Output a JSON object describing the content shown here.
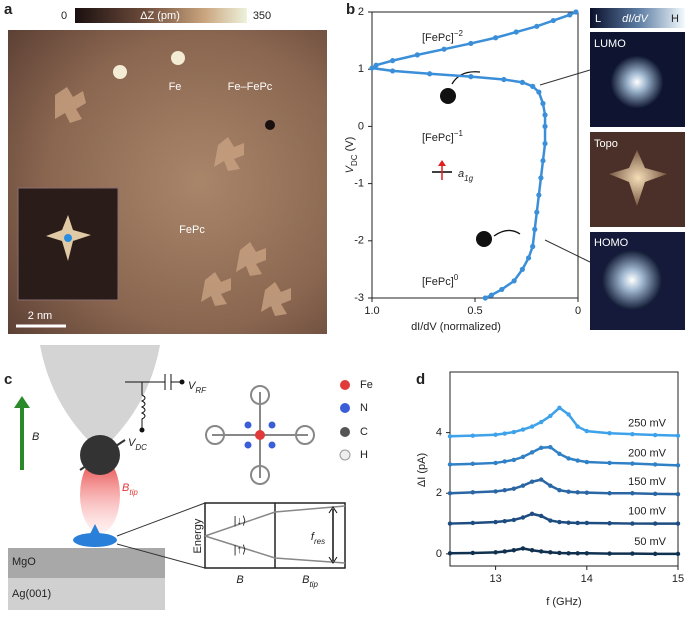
{
  "panel_labels": [
    "a",
    "b",
    "c",
    "d"
  ],
  "panel_a": {
    "colorbar": {
      "min": "0",
      "label": "ΔZ (pm)",
      "max": "350"
    },
    "labels": [
      "Fe",
      "Fe–FePc",
      "FePc"
    ],
    "scale_bar": "2 nm"
  },
  "panel_b": {
    "colorbar": {
      "low": "L",
      "label": "dI/dV",
      "high": "H"
    },
    "images": [
      "LUMO",
      "Topo",
      "HOMO"
    ],
    "states": [
      {
        "text": "[FePc]",
        "sup": "−2"
      },
      {
        "text": "[FePc]",
        "sup": "−1"
      },
      {
        "text": "[FePc]",
        "sup": "0"
      }
    ],
    "orbital": {
      "text": "a",
      "sub": "1g"
    }
  },
  "panel_c": {
    "legend": [
      "Fe",
      "N",
      "C",
      "H"
    ],
    "layers": [
      "MgO",
      "Ag(001)"
    ],
    "field": "B",
    "tip_field": {
      "text": "B",
      "sub": "tip"
    },
    "v_rf": {
      "text": "V",
      "sub": "RF"
    },
    "v_dc": {
      "text": "V",
      "sub": "DC"
    },
    "energy_axis": "Energy",
    "states": [
      "|↓⟩",
      "|↑⟩"
    ],
    "f_res": {
      "text": "f",
      "sub": "res"
    },
    "x_labels": [
      {
        "text": "B"
      },
      {
        "text": "B",
        "sub": "tip"
      }
    ]
  },
  "chart_data": [
    {
      "type": "line",
      "color": "#3b8fd9",
      "xlabel": "dI/dV (normalized)",
      "ylabel": {
        "text": "V",
        "sub": "DC",
        "rest": " (V)"
      },
      "xlim": [
        1,
        0
      ],
      "ylim": [
        -3,
        2
      ],
      "xticks": [
        {
          "value": 1,
          "label": "1.0"
        },
        0.5,
        0
      ],
      "yticks": [
        -3,
        -2,
        -1,
        0,
        1,
        2
      ],
      "x": [
        0.01,
        0.04,
        0.12,
        0.2,
        0.3,
        0.4,
        0.52,
        0.65,
        0.78,
        0.9,
        0.98,
        1.0,
        0.9,
        0.72,
        0.52,
        0.36,
        0.27,
        0.22,
        0.19,
        0.17,
        0.16,
        0.16,
        0.16,
        0.17,
        0.18,
        0.19,
        0.2,
        0.21,
        0.22,
        0.24,
        0.27,
        0.31,
        0.37,
        0.42,
        0.45
      ],
      "values": [
        2.0,
        1.95,
        1.85,
        1.75,
        1.65,
        1.55,
        1.45,
        1.35,
        1.25,
        1.15,
        1.07,
        1.02,
        0.97,
        0.92,
        0.87,
        0.82,
        0.77,
        0.7,
        0.6,
        0.4,
        0.2,
        0,
        -0.3,
        -0.6,
        -0.9,
        -1.2,
        -1.5,
        -1.8,
        -2.1,
        -2.3,
        -2.5,
        -2.7,
        -2.85,
        -2.95,
        -3.0
      ]
    },
    {
      "type": "line",
      "xlabel": "f (GHz)",
      "ylabel": "ΔI (pA)",
      "xlim": [
        12.5,
        15
      ],
      "ylim": [
        -0.4,
        6
      ],
      "xticks": [
        13,
        14,
        15
      ],
      "yticks": [
        0,
        2,
        4
      ],
      "x": [
        12.5,
        12.75,
        13,
        13.1,
        13.2,
        13.3,
        13.4,
        13.5,
        13.6,
        13.7,
        13.8,
        13.9,
        14,
        14.25,
        14.5,
        14.75,
        15
      ],
      "series": [
        {
          "name": "50 mV",
          "color": "#10304f",
          "values": [
            0.02,
            0.03,
            0.05,
            0.08,
            0.12,
            0.18,
            0.12,
            0.08,
            0.05,
            0.03,
            0.02,
            0.02,
            0.02,
            0.01,
            0.01,
            0,
            0
          ]
        },
        {
          "name": "100 mV",
          "color": "#1d4c80",
          "values": [
            1.0,
            1.02,
            1.05,
            1.08,
            1.12,
            1.2,
            1.32,
            1.25,
            1.1,
            1.05,
            1.03,
            1.02,
            1.02,
            1.01,
            1.0,
            1.0,
            1.0
          ]
        },
        {
          "name": "150 mV",
          "color": "#2a66a3",
          "values": [
            2.0,
            2.03,
            2.06,
            2.1,
            2.15,
            2.25,
            2.38,
            2.45,
            2.25,
            2.1,
            2.05,
            2.03,
            2.02,
            2.0,
            2.0,
            1.98,
            1.97
          ]
        },
        {
          "name": "200 mV",
          "color": "#3080c6",
          "values": [
            2.95,
            2.97,
            3.0,
            3.05,
            3.1,
            3.2,
            3.35,
            3.5,
            3.52,
            3.3,
            3.15,
            3.08,
            3.03,
            3.0,
            2.98,
            2.95,
            2.92
          ]
        },
        {
          "name": "250 mV",
          "color": "#3ea2ea",
          "values": [
            3.88,
            3.9,
            3.93,
            3.97,
            4.02,
            4.1,
            4.2,
            4.35,
            4.55,
            4.82,
            4.6,
            4.2,
            4.05,
            3.98,
            3.95,
            3.92,
            3.9
          ]
        }
      ]
    }
  ]
}
